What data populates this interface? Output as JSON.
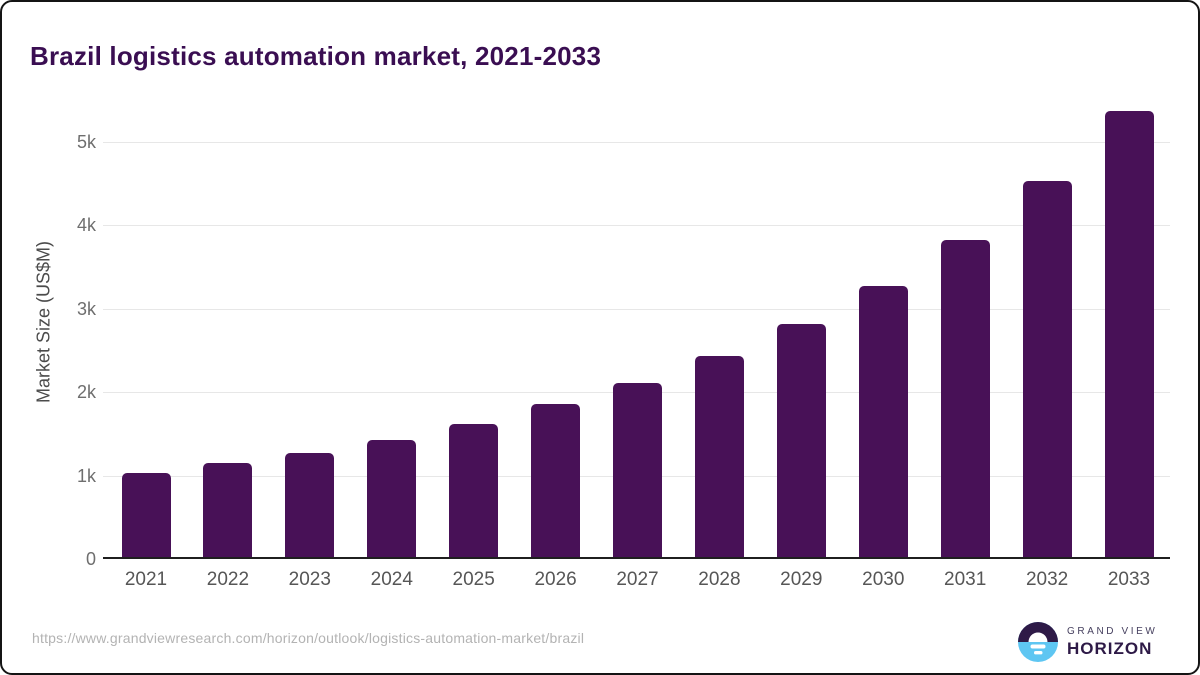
{
  "page": {
    "title": "Brazil logistics automation market, 2021-2033",
    "source_url": "https://www.grandviewresearch.com/horizon/outlook/logistics-automation-market/brazil"
  },
  "logo": {
    "icon": "horizon-sunrise-icon",
    "brand_top": "GRAND VIEW",
    "brand_bottom": "HORIZON"
  },
  "colors": {
    "bar": "#481157",
    "title_text": "#3a0e52",
    "axis_tick_text": "#6e6e6e",
    "x_tick_text": "#565656",
    "gridline": "#e7e7e7",
    "axis_line": "#1f1f1f",
    "url_text": "#b3b3b3",
    "logo_dark_purple": "#2e1a47",
    "logo_light_blue": "#5ec6f2"
  },
  "chart_data": {
    "type": "bar",
    "title": "Brazil logistics automation market, 2021-2033",
    "xlabel": "",
    "ylabel": "Market Size (US$M)",
    "categories": [
      "2021",
      "2022",
      "2023",
      "2024",
      "2025",
      "2026",
      "2027",
      "2028",
      "2029",
      "2030",
      "2031",
      "2032",
      "2033"
    ],
    "values": [
      1030,
      1145,
      1270,
      1425,
      1620,
      1855,
      2110,
      2435,
      2815,
      3270,
      3825,
      4530,
      5365
    ],
    "unit": "US$M",
    "ylim": [
      0,
      5500
    ],
    "ytick_values": [
      0,
      1000,
      2000,
      3000,
      4000,
      5000
    ],
    "ytick_labels": [
      "0",
      "1k",
      "2k",
      "3k",
      "4k",
      "5k"
    ],
    "grid": "horizontal",
    "legend": "none",
    "bar_color": "#481157"
  }
}
